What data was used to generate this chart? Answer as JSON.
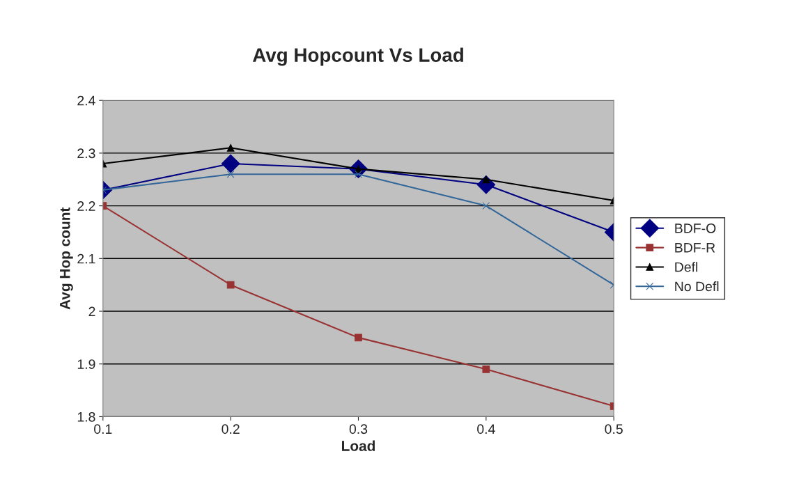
{
  "chart_data": {
    "type": "line",
    "title": "Avg Hopcount Vs Load",
    "xlabel": "Load",
    "ylabel": "Avg Hop count",
    "x": [
      0.1,
      0.2,
      0.3,
      0.4,
      0.5
    ],
    "series": [
      {
        "name": "BDF-O",
        "color": "#000080",
        "marker": "diamond",
        "values": [
          2.23,
          2.28,
          2.27,
          2.24,
          2.15
        ]
      },
      {
        "name": "BDF-R",
        "color": "#993333",
        "marker": "square",
        "values": [
          2.2,
          2.05,
          1.95,
          1.89,
          1.82
        ]
      },
      {
        "name": "Defl",
        "color": "#000000",
        "marker": "triangle",
        "values": [
          2.28,
          2.31,
          2.27,
          2.25,
          2.21
        ]
      },
      {
        "name": "No Defl",
        "color": "#336699",
        "marker": "cross",
        "values": [
          2.23,
          2.26,
          2.26,
          2.2,
          2.05
        ]
      }
    ],
    "xlim": [
      0.1,
      0.5
    ],
    "xticks": [
      0.1,
      0.2,
      0.3,
      0.4,
      0.5
    ],
    "ylim": [
      1.8,
      2.4
    ],
    "yticks": [
      1.8,
      1.9,
      2,
      2.1,
      2.2,
      2.3,
      2.4
    ],
    "grid": "y",
    "legend": "right"
  }
}
